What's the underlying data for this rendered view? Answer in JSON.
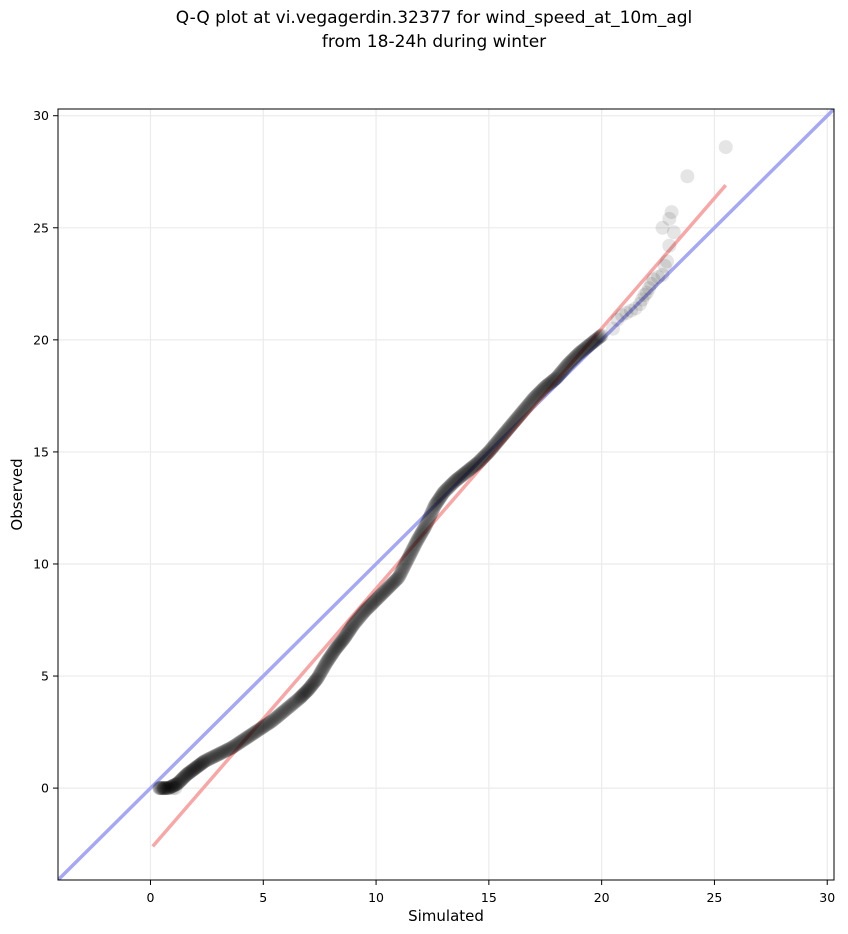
{
  "chart_data": {
    "type": "scatter",
    "title_lines": [
      "Q-Q plot at vi.vegagerdin.32377 for wind_speed_at_10m_agl",
      "from 18-24h during winter"
    ],
    "xlabel": "Simulated",
    "ylabel": "Observed",
    "xlim": [
      -4.1,
      30.3
    ],
    "ylim": [
      -4.1,
      30.3
    ],
    "x_ticks": [
      0,
      5,
      10,
      15,
      20,
      25,
      30
    ],
    "y_ticks": [
      0,
      5,
      10,
      15,
      20,
      25,
      30
    ],
    "grid": true,
    "reference_line": {
      "from": [
        -4.1,
        -4.1
      ],
      "to": [
        30.3,
        30.3
      ],
      "color": "#a6a8f0"
    },
    "fit_line": {
      "from": [
        0.1,
        -2.6
      ],
      "to": [
        25.5,
        26.9
      ],
      "color": "#f5a8a8"
    },
    "point_color": "#000000",
    "quantile_curve": [
      [
        0.4,
        0.0
      ],
      [
        0.8,
        0.0
      ],
      [
        1.2,
        0.2
      ],
      [
        1.6,
        0.6
      ],
      [
        2.0,
        0.9
      ],
      [
        2.4,
        1.2
      ],
      [
        3.0,
        1.5
      ],
      [
        3.6,
        1.8
      ],
      [
        4.2,
        2.2
      ],
      [
        4.8,
        2.6
      ],
      [
        5.4,
        3.0
      ],
      [
        6.0,
        3.5
      ],
      [
        6.6,
        4.0
      ],
      [
        7.0,
        4.4
      ],
      [
        7.4,
        4.9
      ],
      [
        7.8,
        5.6
      ],
      [
        8.2,
        6.2
      ],
      [
        8.6,
        6.7
      ],
      [
        9.0,
        7.3
      ],
      [
        9.5,
        7.9
      ],
      [
        10.0,
        8.4
      ],
      [
        10.5,
        8.9
      ],
      [
        11.0,
        9.4
      ],
      [
        11.4,
        10.2
      ],
      [
        11.8,
        11.0
      ],
      [
        12.2,
        11.7
      ],
      [
        12.6,
        12.6
      ],
      [
        13.0,
        13.2
      ],
      [
        13.5,
        13.7
      ],
      [
        14.0,
        14.1
      ],
      [
        14.5,
        14.5
      ],
      [
        15.0,
        15.0
      ],
      [
        15.5,
        15.6
      ],
      [
        16.0,
        16.2
      ],
      [
        16.5,
        16.8
      ],
      [
        17.0,
        17.4
      ],
      [
        17.5,
        17.9
      ],
      [
        18.0,
        18.3
      ],
      [
        18.5,
        18.9
      ],
      [
        19.0,
        19.4
      ],
      [
        19.5,
        19.8
      ],
      [
        20.0,
        20.2
      ]
    ],
    "tail_points": [
      [
        20.5,
        20.5
      ],
      [
        20.7,
        20.9
      ],
      [
        20.9,
        21.1
      ],
      [
        21.1,
        21.2
      ],
      [
        21.3,
        21.3
      ],
      [
        21.5,
        21.4
      ],
      [
        21.7,
        21.6
      ],
      [
        21.8,
        21.8
      ],
      [
        21.9,
        22.0
      ],
      [
        22.0,
        22.1
      ],
      [
        22.1,
        22.3
      ],
      [
        22.2,
        22.5
      ],
      [
        22.3,
        22.7
      ],
      [
        22.5,
        22.8
      ],
      [
        22.7,
        22.9
      ],
      [
        22.8,
        23.3
      ],
      [
        22.9,
        23.5
      ],
      [
        23.0,
        24.2
      ],
      [
        23.2,
        24.8
      ],
      [
        22.7,
        25.0
      ],
      [
        23.0,
        25.4
      ],
      [
        23.1,
        25.7
      ],
      [
        23.8,
        27.3
      ],
      [
        25.5,
        28.6
      ]
    ]
  }
}
